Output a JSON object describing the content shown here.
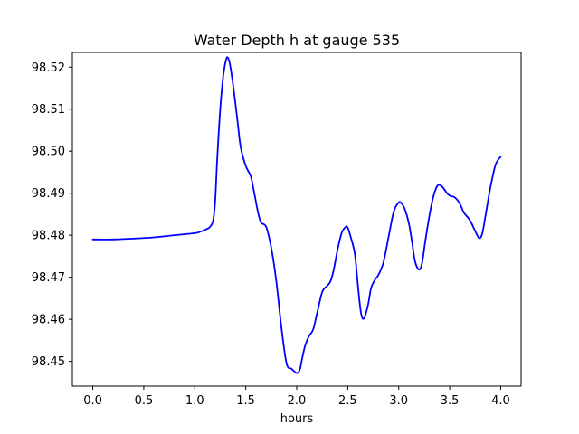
{
  "chart_data": {
    "type": "line",
    "title": "Water Depth h at gauge 535",
    "xlabel": "hours",
    "ylabel": "",
    "xlim": [
      -0.2,
      4.2
    ],
    "ylim": [
      98.4441,
      98.5235
    ],
    "xticks": [
      0.0,
      0.5,
      1.0,
      1.5,
      2.0,
      2.5,
      3.0,
      3.5,
      4.0
    ],
    "xtick_labels": [
      "0.0",
      "0.5",
      "1.0",
      "1.5",
      "2.0",
      "2.5",
      "3.0",
      "3.5",
      "4.0"
    ],
    "yticks": [
      98.45,
      98.46,
      98.47,
      98.48,
      98.49,
      98.5,
      98.51,
      98.52
    ],
    "ytick_labels": [
      "98.45",
      "98.46",
      "98.47",
      "98.48",
      "98.49",
      "98.50",
      "98.51",
      "98.52"
    ],
    "grid": false,
    "legend": "none",
    "series": [
      {
        "color": "#0000ff",
        "x": [
          0.0,
          0.2,
          0.4,
          0.6,
          0.8,
          1.0,
          1.05,
          1.12,
          1.15,
          1.18,
          1.2,
          1.22,
          1.25,
          1.28,
          1.31,
          1.33,
          1.35,
          1.38,
          1.42,
          1.45,
          1.5,
          1.55,
          1.58,
          1.62,
          1.65,
          1.7,
          1.75,
          1.8,
          1.85,
          1.9,
          1.95,
          2.0,
          2.03,
          2.05,
          2.08,
          2.12,
          2.16,
          2.2,
          2.25,
          2.3,
          2.33,
          2.36,
          2.4,
          2.44,
          2.48,
          2.5,
          2.53,
          2.57,
          2.6,
          2.63,
          2.66,
          2.7,
          2.73,
          2.77,
          2.8,
          2.85,
          2.9,
          2.95,
          3.0,
          3.03,
          3.06,
          3.1,
          3.13,
          3.16,
          3.2,
          3.23,
          3.26,
          3.3,
          3.34,
          3.38,
          3.42,
          3.45,
          3.48,
          3.51,
          3.55,
          3.6,
          3.63,
          3.65,
          3.7,
          3.75,
          3.79,
          3.82,
          3.85,
          3.9,
          3.95,
          4.0
        ],
        "y": [
          98.479,
          98.479,
          98.4792,
          98.4795,
          98.48,
          98.4805,
          98.4808,
          98.4815,
          98.482,
          98.4835,
          98.488,
          98.498,
          98.51,
          98.518,
          98.522,
          98.522,
          98.52,
          98.515,
          98.507,
          98.501,
          98.4965,
          98.494,
          98.4905,
          98.4855,
          98.483,
          98.482,
          98.477,
          98.469,
          98.458,
          98.4495,
          98.4482,
          98.4472,
          98.448,
          98.4503,
          98.4535,
          98.456,
          98.4575,
          98.4615,
          98.4665,
          98.468,
          98.469,
          98.4715,
          98.4765,
          98.4805,
          98.482,
          98.4818,
          98.4795,
          98.4755,
          98.468,
          98.4615,
          98.4602,
          98.4635,
          98.4675,
          98.4695,
          98.4705,
          98.4735,
          98.4795,
          98.4855,
          98.4878,
          98.4875,
          98.4862,
          98.4828,
          98.4785,
          98.4738,
          98.4718,
          98.4735,
          98.4785,
          98.4845,
          98.4892,
          98.4918,
          98.4917,
          98.4908,
          98.4898,
          98.4893,
          98.489,
          98.4875,
          98.4858,
          98.485,
          98.4835,
          98.481,
          98.4793,
          98.4805,
          98.4845,
          98.4915,
          98.4968,
          98.4987
        ]
      }
    ]
  }
}
